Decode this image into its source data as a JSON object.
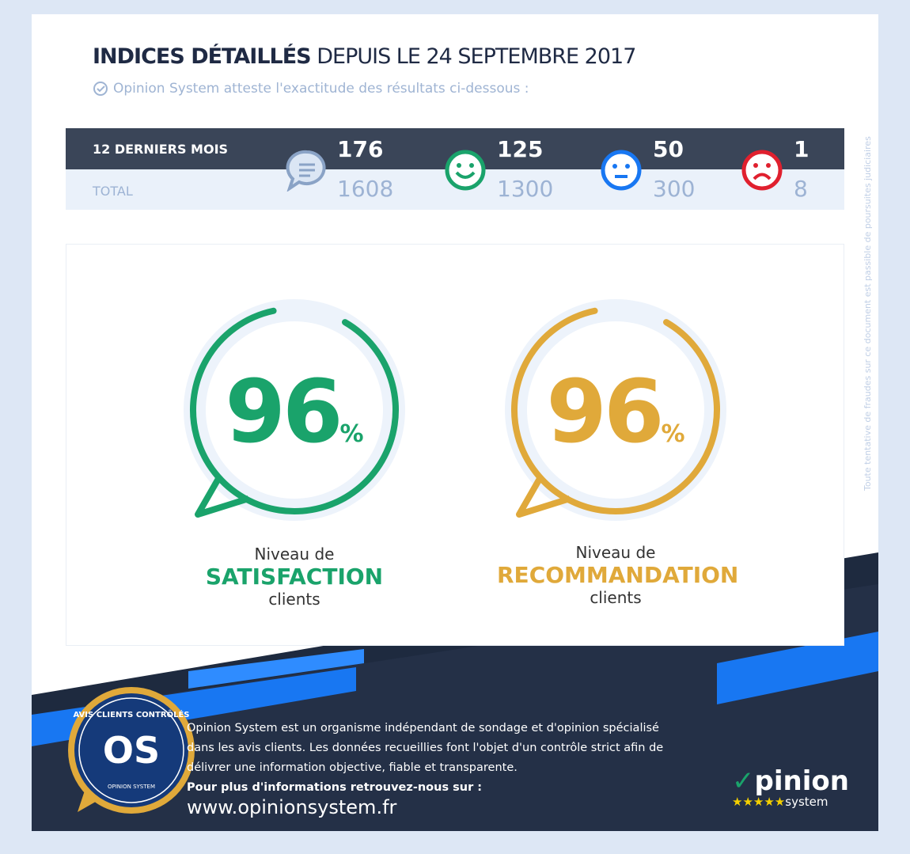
{
  "header": {
    "title_bold": "INDICES DÉTAILLÉS",
    "title_rest": "DEPUIS LE 24 SEPTEMBRE 2017",
    "subtitle": "Opinion System atteste l'exactitude des résultats ci-dessous :"
  },
  "stats": {
    "row1_label": "12 DERNIERS MOIS",
    "row2_label": "TOTAL",
    "columns": [
      {
        "icon": "speech-bubble-icon",
        "recent": "176",
        "total": "1608"
      },
      {
        "icon": "happy-face-icon",
        "recent": "125",
        "total": "1300",
        "color": "#1aa36b"
      },
      {
        "icon": "neutral-face-icon",
        "recent": "50",
        "total": "300",
        "color": "#1877f2"
      },
      {
        "icon": "sad-face-icon",
        "recent": "1",
        "total": "8",
        "color": "#e0202e"
      }
    ]
  },
  "gauges": [
    {
      "value": "96",
      "unit": "%",
      "value_fraction": 0.96,
      "line1": "Niveau de",
      "line2": "SATISFACTION",
      "line3": "clients",
      "color": "#1aa36b"
    },
    {
      "value": "96",
      "unit": "%",
      "value_fraction": 0.96,
      "line1": "Niveau de",
      "line2": "RECOMMANDATION",
      "line3": "clients",
      "color": "#e0a93a"
    }
  ],
  "footer": {
    "line1": "Opinion System est un organisme indépendant de sondage et d'opinion spécialisé",
    "line2": "dans les avis clients. Les données recueillies font l'objet d'un contrôle strict afin de",
    "line3": "délivrer une information objective, fiable et transparente.",
    "more": "Pour plus d'informations retrouvez-nous sur :",
    "url": "www.opinionsystem.fr",
    "badge_text": "AVIS CLIENTS CONTRÔLÉS",
    "badge_sub": "OPINION SYSTEM",
    "logo_main": "pinion",
    "logo_sub": "system"
  },
  "side_note": "Toute tentative de fraudes sur ce document est passible de poursuites judiciaires"
}
